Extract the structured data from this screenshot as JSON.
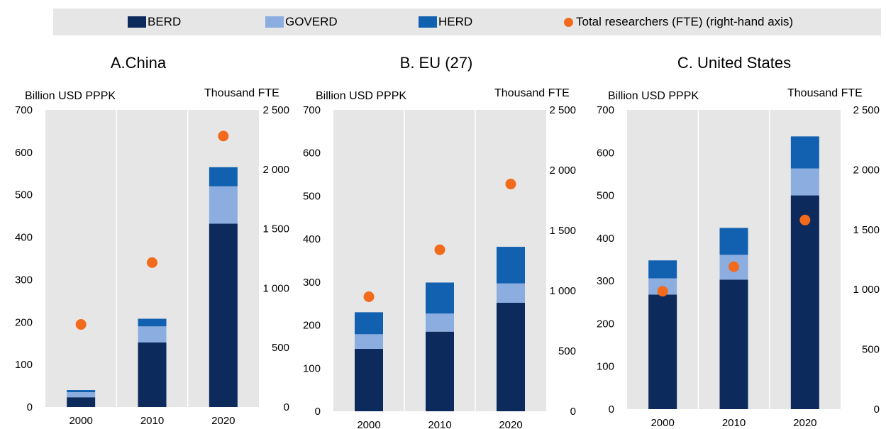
{
  "legend": {
    "berd": "BERD",
    "goverd": "GOVERD",
    "herd": "HERD",
    "researchers": "Total researchers (FTE) (right-hand axis)"
  },
  "colors": {
    "berd": "#0d2a5c",
    "goverd": "#8cade0",
    "herd": "#1261b0",
    "researchers": "#f26a1b",
    "plot_bg": "#e6e6e6",
    "legend_bg": "#e6e6e6",
    "grid": "#ffffff"
  },
  "chart_data": [
    {
      "type": "bar",
      "title": "A.China",
      "ylabel_left": "Billion USD PPPK",
      "ylabel_right": "Thousand FTE",
      "categories": [
        "2000",
        "2010",
        "2020"
      ],
      "ylim_left": [
        0,
        700
      ],
      "ylim_right": [
        0,
        2500
      ],
      "yticks_left": [
        "0",
        "100",
        "200",
        "300",
        "400",
        "500",
        "600",
        "700"
      ],
      "yticks_right": [
        "0",
        "500",
        "1 000",
        "1 500",
        "2 000",
        "2 500"
      ],
      "series": [
        {
          "name": "BERD",
          "values": [
            23,
            152,
            432
          ]
        },
        {
          "name": "GOVERD",
          "values": [
            12,
            38,
            88
          ]
        },
        {
          "name": "HERD",
          "values": [
            5,
            18,
            45
          ]
        }
      ],
      "researchers": [
        695,
        1215,
        2280
      ]
    },
    {
      "type": "bar",
      "title": "B. EU (27)",
      "ylabel_left": "Billion USD PPPK",
      "ylabel_right": "Thousand FTE",
      "categories": [
        "2000",
        "2010",
        "2020"
      ],
      "ylim_left": [
        0,
        700
      ],
      "ylim_right": [
        0,
        2500
      ],
      "yticks_left": [
        "0",
        "100",
        "200",
        "300",
        "400",
        "500",
        "600",
        "700"
      ],
      "yticks_right": [
        "0",
        "500",
        "1 000",
        "1 500",
        "2 000",
        "2 500"
      ],
      "series": [
        {
          "name": "BERD",
          "values": [
            145,
            185,
            252
          ]
        },
        {
          "name": "GOVERD",
          "values": [
            34,
            42,
            45
          ]
        },
        {
          "name": "HERD",
          "values": [
            51,
            72,
            85
          ]
        }
      ],
      "researchers": [
        950,
        1340,
        1885
      ]
    },
    {
      "type": "bar",
      "title": "C. United States",
      "ylabel_left": "Billion USD PPPK",
      "ylabel_right": "Thousand FTE",
      "categories": [
        "2000",
        "2010",
        "2020"
      ],
      "ylim_left": [
        0,
        700
      ],
      "ylim_right": [
        0,
        2500
      ],
      "yticks_left": [
        "0",
        "100",
        "200",
        "300",
        "400",
        "500",
        "600",
        "700"
      ],
      "yticks_right": [
        "0",
        "500",
        "1 000",
        "1 500",
        "2 000",
        "2 500"
      ],
      "series": [
        {
          "name": "BERD",
          "values": [
            268,
            303,
            500
          ]
        },
        {
          "name": "GOVERD",
          "values": [
            38,
            58,
            63
          ]
        },
        {
          "name": "HERD",
          "values": [
            42,
            63,
            75
          ]
        }
      ],
      "researchers": [
        985,
        1190,
        1580
      ]
    }
  ]
}
